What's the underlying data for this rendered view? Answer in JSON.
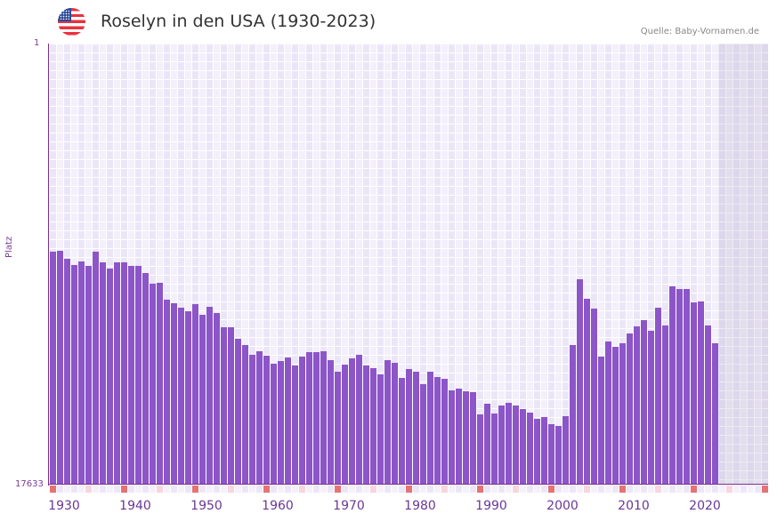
{
  "header": {
    "flag_icon": "usa-flag-icon",
    "title": "Roselyn in den USA (1930-2023)",
    "source": "Quelle: Baby-Vornamen.de"
  },
  "colors": {
    "bar": "#8c55c8",
    "axis": "#7b2d8e",
    "decade_marker": "#e57373",
    "half_decade_marker": "#f7d6dc",
    "plot_bg": "#f3effb"
  },
  "chart_data": {
    "type": "bar",
    "title": "Roselyn in den USA (1930-2023)",
    "xlabel": "",
    "ylabel": "Platz",
    "y_inverted": true,
    "ylim": [
      1,
      17633
    ],
    "xlim": [
      1930,
      2030
    ],
    "y_ticks": [
      "1",
      "17633"
    ],
    "x_ticks": [
      "1930",
      "1940",
      "1950",
      "1960",
      "1970",
      "1980",
      "1990",
      "2000",
      "2010",
      "2020"
    ],
    "grid": true,
    "legend": null,
    "x": [
      1930,
      1931,
      1932,
      1933,
      1934,
      1935,
      1936,
      1937,
      1938,
      1939,
      1940,
      1941,
      1942,
      1943,
      1944,
      1945,
      1946,
      1947,
      1948,
      1949,
      1950,
      1951,
      1952,
      1953,
      1954,
      1955,
      1956,
      1957,
      1958,
      1959,
      1960,
      1961,
      1962,
      1963,
      1964,
      1965,
      1966,
      1967,
      1968,
      1969,
      1970,
      1971,
      1972,
      1973,
      1974,
      1975,
      1976,
      1977,
      1978,
      1979,
      1980,
      1981,
      1982,
      1983,
      1984,
      1985,
      1986,
      1987,
      1988,
      1989,
      1990,
      1991,
      1992,
      1993,
      1994,
      1995,
      1996,
      1997,
      1998,
      1999,
      2000,
      2001,
      2002,
      2003,
      2004,
      2005,
      2006,
      2007,
      2008,
      2009,
      2010,
      2011,
      2012,
      2013,
      2014,
      2015,
      2016,
      2017,
      2018,
      2019,
      2020,
      2021,
      2022,
      2023
    ],
    "values": [
      8321,
      8286,
      8606,
      8855,
      8713,
      8891,
      8321,
      8748,
      8998,
      8748,
      8748,
      8891,
      8891,
      9175,
      9602,
      9566,
      10242,
      10384,
      10562,
      10704,
      10420,
      10847,
      10527,
      10776,
      11345,
      11345,
      11807,
      12056,
      12448,
      12305,
      12483,
      12803,
      12697,
      12554,
      12874,
      12519,
      12341,
      12341,
      12305,
      12661,
      13123,
      12839,
      12590,
      12448,
      12874,
      12981,
      13230,
      12661,
      12768,
      13372,
      13017,
      13123,
      13621,
      13123,
      13337,
      13408,
      13870,
      13799,
      13906,
      13941,
      14830,
      14404,
      14795,
      14475,
      14368,
      14475,
      14617,
      14760,
      15008,
      14937,
      15222,
      15293,
      14902,
      12056,
      9424,
      10206,
      10598,
      12519,
      11914,
      12127,
      11985,
      11594,
      11309,
      11060,
      11487,
      10562,
      11274,
      9709,
      9815,
      9815,
      10349,
      10313,
      11274,
      11985
    ]
  },
  "axes": {
    "y_top_label": "1",
    "y_bottom_label": "17633",
    "y_title": "Platz"
  }
}
